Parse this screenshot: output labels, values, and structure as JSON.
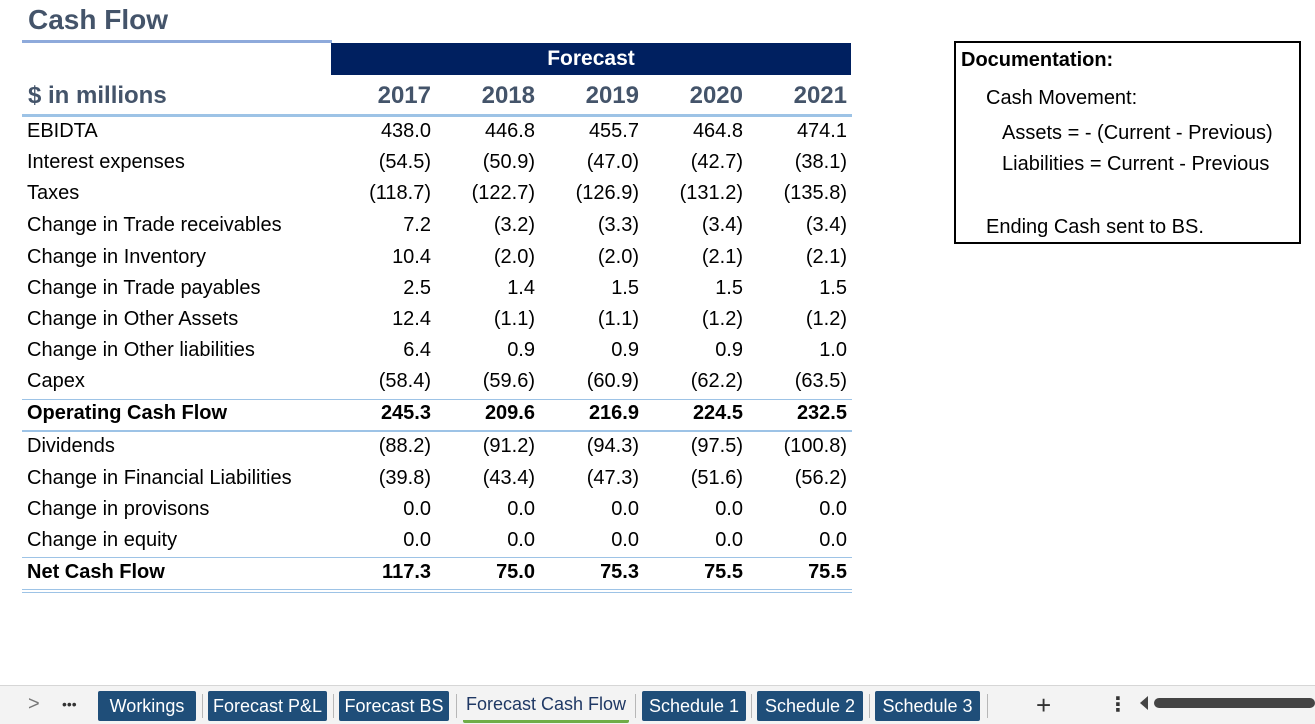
{
  "title": "Cash Flow",
  "forecast_label": "Forecast",
  "units_label": "$ in millions",
  "years": [
    "2017",
    "2018",
    "2019",
    "2020",
    "2021"
  ],
  "rows": [
    {
      "label": "EBIDTA",
      "values": [
        "438.0",
        "446.8",
        "455.7",
        "464.8",
        "474.1"
      ]
    },
    {
      "label": "Interest expenses",
      "values": [
        "(54.5)",
        "(50.9)",
        "(47.0)",
        "(42.7)",
        "(38.1)"
      ]
    },
    {
      "label": "Taxes",
      "values": [
        "(118.7)",
        "(122.7)",
        "(126.9)",
        "(131.2)",
        "(135.8)"
      ]
    },
    {
      "label": "Change in Trade receivables",
      "values": [
        "7.2",
        "(3.2)",
        "(3.3)",
        "(3.4)",
        "(3.4)"
      ]
    },
    {
      "label": "Change in Inventory",
      "values": [
        "10.4",
        "(2.0)",
        "(2.0)",
        "(2.1)",
        "(2.1)"
      ]
    },
    {
      "label": "Change in Trade payables",
      "values": [
        "2.5",
        "1.4",
        "1.5",
        "1.5",
        "1.5"
      ]
    },
    {
      "label": "Change in Other Assets",
      "values": [
        "12.4",
        "(1.1)",
        "(1.1)",
        "(1.2)",
        "(1.2)"
      ]
    },
    {
      "label": "Change in Other liabilities",
      "values": [
        "6.4",
        "0.9",
        "0.9",
        "0.9",
        "1.0"
      ]
    },
    {
      "label": "Capex",
      "values": [
        "(58.4)",
        "(59.6)",
        "(60.9)",
        "(62.2)",
        "(63.5)"
      ]
    },
    {
      "label": "Operating Cash Flow",
      "values": [
        "245.3",
        "209.6",
        "216.9",
        "224.5",
        "232.5"
      ]
    },
    {
      "label": "Dividends",
      "values": [
        "(88.2)",
        "(91.2)",
        "(94.3)",
        "(97.5)",
        "(100.8)"
      ]
    },
    {
      "label": "Change in Financial Liabilities",
      "values": [
        "(39.8)",
        "(43.4)",
        "(47.3)",
        "(51.6)",
        "(56.2)"
      ]
    },
    {
      "label": "Change in provisons",
      "values": [
        "0.0",
        "0.0",
        "0.0",
        "0.0",
        "0.0"
      ]
    },
    {
      "label": "Change in equity",
      "values": [
        "0.0",
        "0.0",
        "0.0",
        "0.0",
        "0.0"
      ]
    },
    {
      "label": "Net Cash Flow",
      "values": [
        "117.3",
        "75.0",
        "75.3",
        "75.5",
        "75.5"
      ]
    }
  ],
  "documentation": {
    "title": "Documentation:",
    "line1": "Cash Movement:",
    "line2": "Assets = - (Current - Previous)",
    "line3": "Liabilities = Current - Previous",
    "line4": "Ending Cash sent to BS."
  },
  "tabs": {
    "nav_next": ">",
    "more": "•••",
    "items": [
      "Workings",
      "Forecast P&L",
      "Forecast BS",
      "Forecast Cash Flow",
      "Schedule 1",
      "Schedule 2",
      "Schedule 3"
    ],
    "active": "Forecast Cash Flow",
    "add": "+",
    "options": "⋮"
  }
}
